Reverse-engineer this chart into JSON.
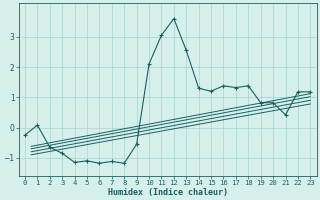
{
  "xlabel": "Humidex (Indice chaleur)",
  "bg_color": "#d5efeb",
  "grid_color": "#a8d4ce",
  "line_color": "#1a6060",
  "x_values": [
    0,
    1,
    2,
    3,
    4,
    5,
    6,
    7,
    8,
    9,
    10,
    11,
    12,
    13,
    14,
    15,
    16,
    17,
    18,
    19,
    20,
    21,
    22,
    23
  ],
  "y_main": [
    -0.25,
    0.08,
    -0.65,
    -0.85,
    -1.15,
    -1.1,
    -1.18,
    -1.12,
    -1.18,
    -0.55,
    2.1,
    3.05,
    3.6,
    2.55,
    1.3,
    1.2,
    1.38,
    1.32,
    1.38,
    0.82,
    0.82,
    0.42,
    1.18,
    1.18
  ],
  "ylim": [
    -1.6,
    4.1
  ],
  "xlim": [
    -0.5,
    23.5
  ],
  "yticks": [
    -1,
    0,
    1,
    2,
    3
  ],
  "xticks": [
    0,
    1,
    2,
    3,
    4,
    5,
    6,
    7,
    8,
    9,
    10,
    11,
    12,
    13,
    14,
    15,
    16,
    17,
    18,
    19,
    20,
    21,
    22,
    23
  ],
  "regression_lines": [
    {
      "x0": 0.5,
      "y0": -0.62,
      "x1": 23.0,
      "y1": 1.12
    },
    {
      "x0": 0.5,
      "y0": -0.7,
      "x1": 23.0,
      "y1": 1.02
    },
    {
      "x0": 0.5,
      "y0": -0.8,
      "x1": 23.0,
      "y1": 0.9
    },
    {
      "x0": 0.5,
      "y0": -0.9,
      "x1": 23.0,
      "y1": 0.78
    }
  ],
  "xlabel_fontsize": 6.0,
  "tick_fontsize": 5.2
}
